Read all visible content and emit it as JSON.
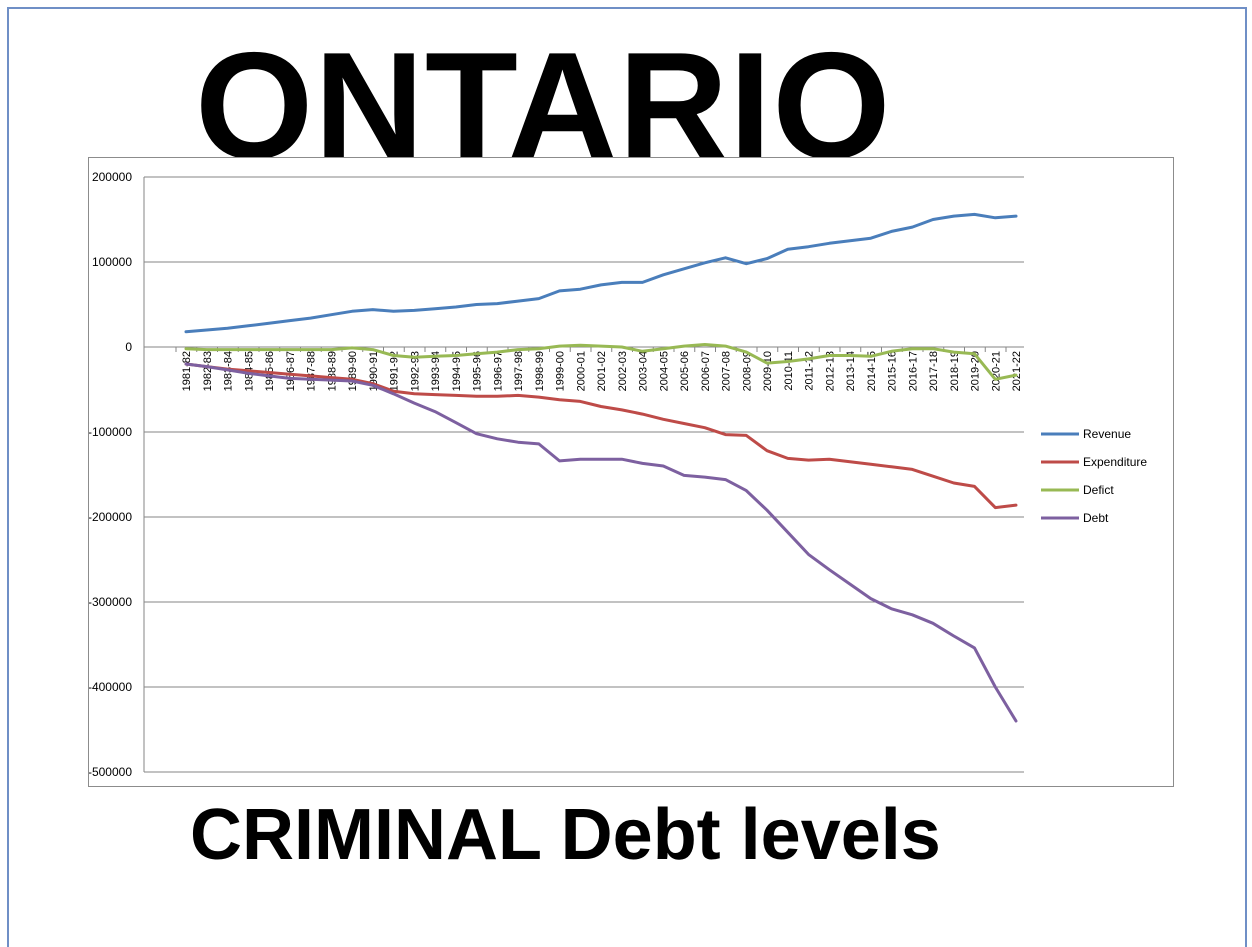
{
  "header": {
    "title": "ONTARIO"
  },
  "footer": {
    "caption": "CRIMINAL Debt levels"
  },
  "chart_data": {
    "type": "line",
    "title": "",
    "xlabel": "",
    "ylabel": "",
    "ylim": [
      -500000,
      200000
    ],
    "yticks": [
      200000,
      100000,
      0,
      -100000,
      -200000,
      -300000,
      -400000,
      -500000
    ],
    "grid": true,
    "legend": "right",
    "categories": [
      "1981-82",
      "1982-83",
      "1983-84",
      "1984-85",
      "1985-86",
      "1986-87",
      "1987-88",
      "1988-89",
      "1989-90",
      "1990-91",
      "1991-92",
      "1992-93",
      "1993-94",
      "1994-95",
      "1995-96",
      "1996-97",
      "1997-98",
      "1998-99",
      "1999-00",
      "2000-01",
      "2001-02",
      "2002-03",
      "2003-04",
      "2004-05",
      "2005-06",
      "2006-07",
      "2007-08",
      "2008-09",
      "2009-10",
      "2010-11",
      "2011-12",
      "2012-13",
      "2013-14",
      "2014-15",
      "2015-16",
      "2016-17",
      "2017-18",
      "2018-19",
      "2019-20",
      "2020-21",
      "2021-22"
    ],
    "series": [
      {
        "name": "Revenue",
        "color": "#4a7ebb",
        "values": [
          18000,
          20000,
          22000,
          25000,
          28000,
          31000,
          34000,
          38000,
          42000,
          44000,
          42000,
          43000,
          45000,
          47000,
          50000,
          51000,
          54000,
          57000,
          66000,
          68000,
          73000,
          76000,
          76000,
          85000,
          92000,
          99000,
          105000,
          98000,
          104000,
          115000,
          118000,
          122000,
          125000,
          128000,
          136000,
          141000,
          150000,
          154000,
          156000,
          152000,
          154000
        ]
      },
      {
        "name": "Expenditure",
        "color": "#be4b48",
        "values": [
          -20000,
          -23000,
          -26000,
          -28000,
          -30000,
          -32000,
          -34000,
          -36000,
          -38000,
          -43000,
          -52000,
          -55000,
          -56000,
          -57000,
          -58000,
          -58000,
          -57000,
          -59000,
          -62000,
          -64000,
          -70000,
          -74000,
          -79000,
          -85000,
          -90000,
          -95000,
          -103000,
          -104000,
          -122000,
          -131000,
          -133000,
          -132000,
          -135000,
          -138000,
          -141000,
          -144000,
          -152000,
          -160000,
          -164000,
          -189000,
          -186000
        ]
      },
      {
        "name": "Defict",
        "color": "#98b954",
        "values": [
          -2000,
          -3000,
          -3000,
          -3000,
          -3000,
          -3000,
          -3000,
          -3000,
          -1000,
          -3000,
          -10000,
          -12000,
          -11000,
          -10000,
          -8000,
          -6000,
          -3000,
          -2000,
          1000,
          2000,
          1000,
          0,
          -5000,
          -2000,
          1000,
          3000,
          1000,
          -6000,
          -19000,
          -17000,
          -14000,
          -10000,
          -10000,
          -11000,
          -5000,
          -2000,
          -2000,
          -6000,
          -8000,
          -38000,
          -33000
        ]
      },
      {
        "name": "Debt",
        "color": "#7d60a0",
        "values": [
          -20000,
          -23000,
          -27000,
          -31000,
          -34000,
          -37000,
          -38000,
          -39000,
          -40000,
          -45000,
          -55000,
          -66000,
          -76000,
          -89000,
          -102000,
          -108000,
          -112000,
          -114000,
          -134000,
          -132000,
          -132000,
          -132000,
          -137000,
          -140000,
          -151000,
          -153000,
          -156000,
          -169000,
          -192000,
          -218000,
          -244000,
          -262000,
          -279000,
          -296000,
          -308000,
          -315000,
          -325000,
          -340000,
          -354000,
          -400000,
          -440000
        ]
      }
    ]
  }
}
